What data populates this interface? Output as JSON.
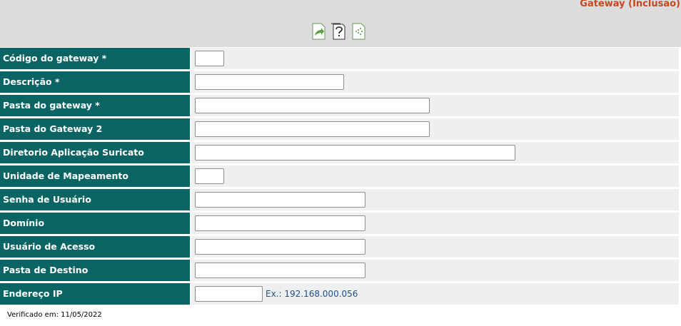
{
  "header": {
    "title": "Gateway (Inclusão)"
  },
  "form": {
    "rows": [
      {
        "label": "Código do gateway *"
      },
      {
        "label": "Descrição *"
      },
      {
        "label": "Pasta do gateway *"
      },
      {
        "label": "Pasta do Gateway 2"
      },
      {
        "label": "Diretorio Aplicação Suricato"
      },
      {
        "label": "Unidade de Mapeamento"
      },
      {
        "label": "Senha de Usuário"
      },
      {
        "label": "Domínio"
      },
      {
        "label": "Usuário de Acesso"
      },
      {
        "label": "Pasta de Destino"
      },
      {
        "label": "Endereço IP",
        "hint": "Ex.: 192.168.000.056"
      }
    ]
  },
  "footer": {
    "text": "Verificado em: 11/05/2022"
  }
}
